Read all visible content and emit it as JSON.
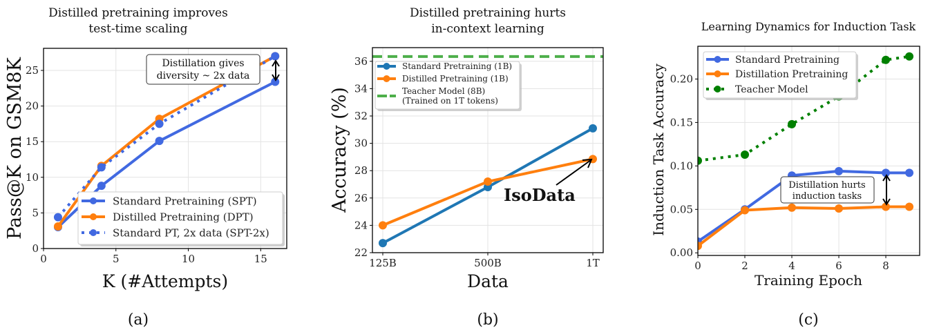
{
  "colors": {
    "standard_blue": "#4169e1",
    "orange": "#ff7f0e",
    "tab_blue": "#1f77b4",
    "teacher_green_dashed": "#4daf4a",
    "teacher_green_dotted": "#008000"
  },
  "chart_data": [
    {
      "type": "line",
      "title": "Distilled pretraining improves\ntest-time scaling",
      "caption": "(a)",
      "xlabel": "K (#Attempts)",
      "ylabel": "Pass@K on GSM8K",
      "xlim": [
        0,
        16.8
      ],
      "ylim": [
        0,
        28.1
      ],
      "xticks": [
        0,
        5,
        10,
        15
      ],
      "yticks": [
        0,
        5,
        10,
        15,
        20,
        25
      ],
      "grid": true,
      "legend": "bottom-right",
      "x": [
        1,
        4,
        8,
        16
      ],
      "series": [
        {
          "name": "Standard Pretraining (SPT)",
          "values": [
            3.0,
            8.8,
            15.1,
            23.4
          ],
          "color": "#4169e1",
          "style": "solid"
        },
        {
          "name": "Distilled Pretraining (DPT)",
          "values": [
            3.1,
            11.6,
            18.2,
            27.0
          ],
          "color": "#ff7f0e",
          "style": "solid"
        },
        {
          "name": "Standard PT, 2x data (SPT-2x)",
          "values": [
            4.4,
            11.4,
            17.5,
            27.0
          ],
          "color": "#4169e1",
          "style": "dotted"
        }
      ],
      "annotations": [
        {
          "text": "Distillation gives\ndiversity ~ 2x data"
        }
      ]
    },
    {
      "type": "line",
      "title": "Distilled pretraining hurts\nin-context learning",
      "caption": "(b)",
      "xlabel": "Data",
      "ylabel": "Accuracy (%)",
      "categories": [
        "125B",
        "500B",
        "1T"
      ],
      "ylim": [
        22,
        37
      ],
      "yticks": [
        22,
        24,
        26,
        28,
        30,
        32,
        34,
        36
      ],
      "grid": true,
      "legend": "top-left",
      "series": [
        {
          "name": "Standard Pretraining (1B)",
          "values": [
            22.7,
            26.8,
            31.1
          ],
          "color": "#1f77b4",
          "style": "solid"
        },
        {
          "name": "Distilled Pretraining (1B)",
          "values": [
            24.0,
            27.2,
            28.85
          ],
          "color": "#ff7f0e",
          "style": "solid"
        },
        {
          "name": "Teacher Model (8B)\n(Trained on 1T tokens)",
          "hline": 36.35,
          "color": "#4daf4a",
          "style": "dashed"
        }
      ],
      "annotations": [
        {
          "text": "IsoData"
        }
      ]
    },
    {
      "type": "line",
      "title": "Learning Dynamics for Induction Task",
      "caption": "(c)",
      "xlabel": "Training Epoch",
      "ylabel": "Induction Task Accuracy",
      "xlim": [
        0,
        9.44
      ],
      "ylim": [
        -0.003,
        0.2377
      ],
      "xticks": [
        0,
        2,
        4,
        6,
        8
      ],
      "yticks": [
        "0.00",
        "0.05",
        "0.10",
        "0.15",
        "0.20"
      ],
      "grid": true,
      "legend": "top-left",
      "x": [
        0,
        2,
        4,
        6,
        8,
        9
      ],
      "series": [
        {
          "name": "Standard Pretraining",
          "values": [
            0.013,
            0.05,
            0.089,
            0.094,
            0.092,
            0.092
          ],
          "color": "#4169e1",
          "style": "solid"
        },
        {
          "name": "Distillation Pretraining",
          "values": [
            0.008,
            0.049,
            0.052,
            0.051,
            0.053,
            0.053
          ],
          "color": "#ff7f0e",
          "style": "solid"
        },
        {
          "name": "Teacher Model",
          "values": [
            0.106,
            0.113,
            0.148,
            0.18,
            0.222,
            0.226
          ],
          "color": "#008000",
          "style": "dotted"
        }
      ],
      "annotations": [
        {
          "text": "Distillation hurts\ninduction tasks"
        }
      ]
    }
  ]
}
